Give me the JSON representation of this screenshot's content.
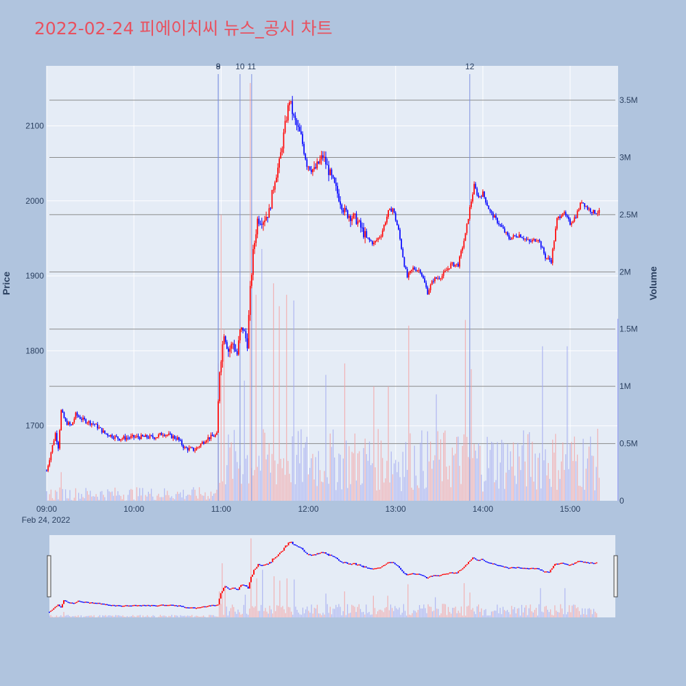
{
  "title": "2022-02-24 피에이치씨 뉴스_공시 차트",
  "colors": {
    "up": "#ff0000",
    "down": "#0000ff",
    "background": "#b0c4de",
    "plot_bg": "#e5ecf6",
    "title": "#e8515f"
  },
  "chart_data": {
    "type": "candlestick",
    "y_axis_title": "Price",
    "y2_axis_title": "Volume",
    "price_ylim": [
      1600,
      2180
    ],
    "volume_ylim": [
      0,
      3800000
    ],
    "price_ticks": [
      "1700",
      "1800",
      "1900",
      "2000",
      "2100"
    ],
    "price_tick_values": [
      1700,
      1800,
      1900,
      2000,
      2100
    ],
    "volume_ticks": [
      "0",
      "0.5M",
      "1M",
      "1.5M",
      "2M",
      "2.5M",
      "3M",
      "3.5M"
    ],
    "volume_tick_values": [
      0,
      500000,
      1000000,
      1500000,
      2000000,
      2500000,
      3000000,
      3500000
    ],
    "x_ticks": [
      "09:00",
      "10:00",
      "11:00",
      "12:00",
      "13:00",
      "14:00",
      "15:00"
    ],
    "x_tick_minutes": [
      540,
      600,
      660,
      720,
      780,
      840,
      900
    ],
    "x_date_label": "Feb 24, 2022",
    "x_range_minutes": [
      540,
      933
    ],
    "news_markers": [
      {
        "label": "8",
        "time": "10:58"
      },
      {
        "label": "9",
        "time": "10:58"
      },
      {
        "label": "10",
        "time": "11:13"
      },
      {
        "label": "11",
        "time": "11:21"
      },
      {
        "label": "12",
        "time": "13:51"
      }
    ],
    "price_path": [
      [
        "09:00",
        1640
      ],
      [
        "09:03",
        1665
      ],
      [
        "09:06",
        1690
      ],
      [
        "09:08",
        1672
      ],
      [
        "09:10",
        1720
      ],
      [
        "09:13",
        1705
      ],
      [
        "09:17",
        1700
      ],
      [
        "09:20",
        1715
      ],
      [
        "09:25",
        1708
      ],
      [
        "09:33",
        1702
      ],
      [
        "09:40",
        1690
      ],
      [
        "09:50",
        1683
      ],
      [
        "10:00",
        1685
      ],
      [
        "10:15",
        1685
      ],
      [
        "10:20",
        1690
      ],
      [
        "10:30",
        1683
      ],
      [
        "10:35",
        1670
      ],
      [
        "10:42",
        1668
      ],
      [
        "10:50",
        1683
      ],
      [
        "10:57",
        1688
      ],
      [
        "10:59",
        1775
      ],
      [
        "11:02",
        1825
      ],
      [
        "11:05",
        1800
      ],
      [
        "11:08",
        1810
      ],
      [
        "11:11",
        1795
      ],
      [
        "11:13",
        1825
      ],
      [
        "11:15",
        1830
      ],
      [
        "11:18",
        1810
      ],
      [
        "11:20",
        1880
      ],
      [
        "11:22",
        1930
      ],
      [
        "11:25",
        1975
      ],
      [
        "11:29",
        1975
      ],
      [
        "11:33",
        1985
      ],
      [
        "11:37",
        2030
      ],
      [
        "11:40",
        2050
      ],
      [
        "11:44",
        2100
      ],
      [
        "11:47",
        2135
      ],
      [
        "11:50",
        2110
      ],
      [
        "11:55",
        2085
      ],
      [
        "11:59",
        2050
      ],
      [
        "12:04",
        2040
      ],
      [
        "12:10",
        2060
      ],
      [
        "12:15",
        2035
      ],
      [
        "12:20",
        2010
      ],
      [
        "12:25",
        1985
      ],
      [
        "12:33",
        1975
      ],
      [
        "12:40",
        1950
      ],
      [
        "12:45",
        1943
      ],
      [
        "12:50",
        1955
      ],
      [
        "12:55",
        1985
      ],
      [
        "12:58",
        1990
      ],
      [
        "13:02",
        1960
      ],
      [
        "13:06",
        1915
      ],
      [
        "13:08",
        1898
      ],
      [
        "13:12",
        1910
      ],
      [
        "13:17",
        1907
      ],
      [
        "13:20",
        1890
      ],
      [
        "13:22",
        1878
      ],
      [
        "13:26",
        1895
      ],
      [
        "13:32",
        1900
      ],
      [
        "13:38",
        1915
      ],
      [
        "13:43",
        1915
      ],
      [
        "13:48",
        1955
      ],
      [
        "13:51",
        1990
      ],
      [
        "13:54",
        2020
      ],
      [
        "13:57",
        2005
      ],
      [
        "14:00",
        2010
      ],
      [
        "14:05",
        1985
      ],
      [
        "14:11",
        1970
      ],
      [
        "14:18",
        1950
      ],
      [
        "14:25",
        1955
      ],
      [
        "14:32",
        1945
      ],
      [
        "14:38",
        1950
      ],
      [
        "14:43",
        1925
      ],
      [
        "14:47",
        1920
      ],
      [
        "14:51",
        1975
      ],
      [
        "14:55",
        1985
      ],
      [
        "15:00",
        1970
      ],
      [
        "15:04",
        1980
      ],
      [
        "15:08",
        2000
      ],
      [
        "15:12",
        1990
      ],
      [
        "15:16",
        1985
      ],
      [
        "15:20",
        1985
      ]
    ],
    "volume_spikes": [
      [
        "09:10",
        250000
      ],
      [
        "10:58",
        1200000
      ],
      [
        "11:00",
        2500000
      ],
      [
        "11:02",
        1500000
      ],
      [
        "11:16",
        1050000
      ],
      [
        "11:20",
        3650000
      ],
      [
        "11:24",
        1800000
      ],
      [
        "11:28",
        2200000
      ],
      [
        "11:36",
        1900000
      ],
      [
        "11:40",
        1700000
      ],
      [
        "11:45",
        1800000
      ],
      [
        "11:50",
        1750000
      ],
      [
        "12:12",
        1100000
      ],
      [
        "12:25",
        1200000
      ],
      [
        "12:45",
        1000000
      ],
      [
        "12:55",
        1000000
      ],
      [
        "13:09",
        1530000
      ],
      [
        "13:28",
        930000
      ],
      [
        "13:48",
        1580000
      ],
      [
        "13:52",
        1150000
      ],
      [
        "14:41",
        1350000
      ],
      [
        "14:58",
        1350000
      ],
      [
        "15:30",
        1590000
      ]
    ]
  }
}
